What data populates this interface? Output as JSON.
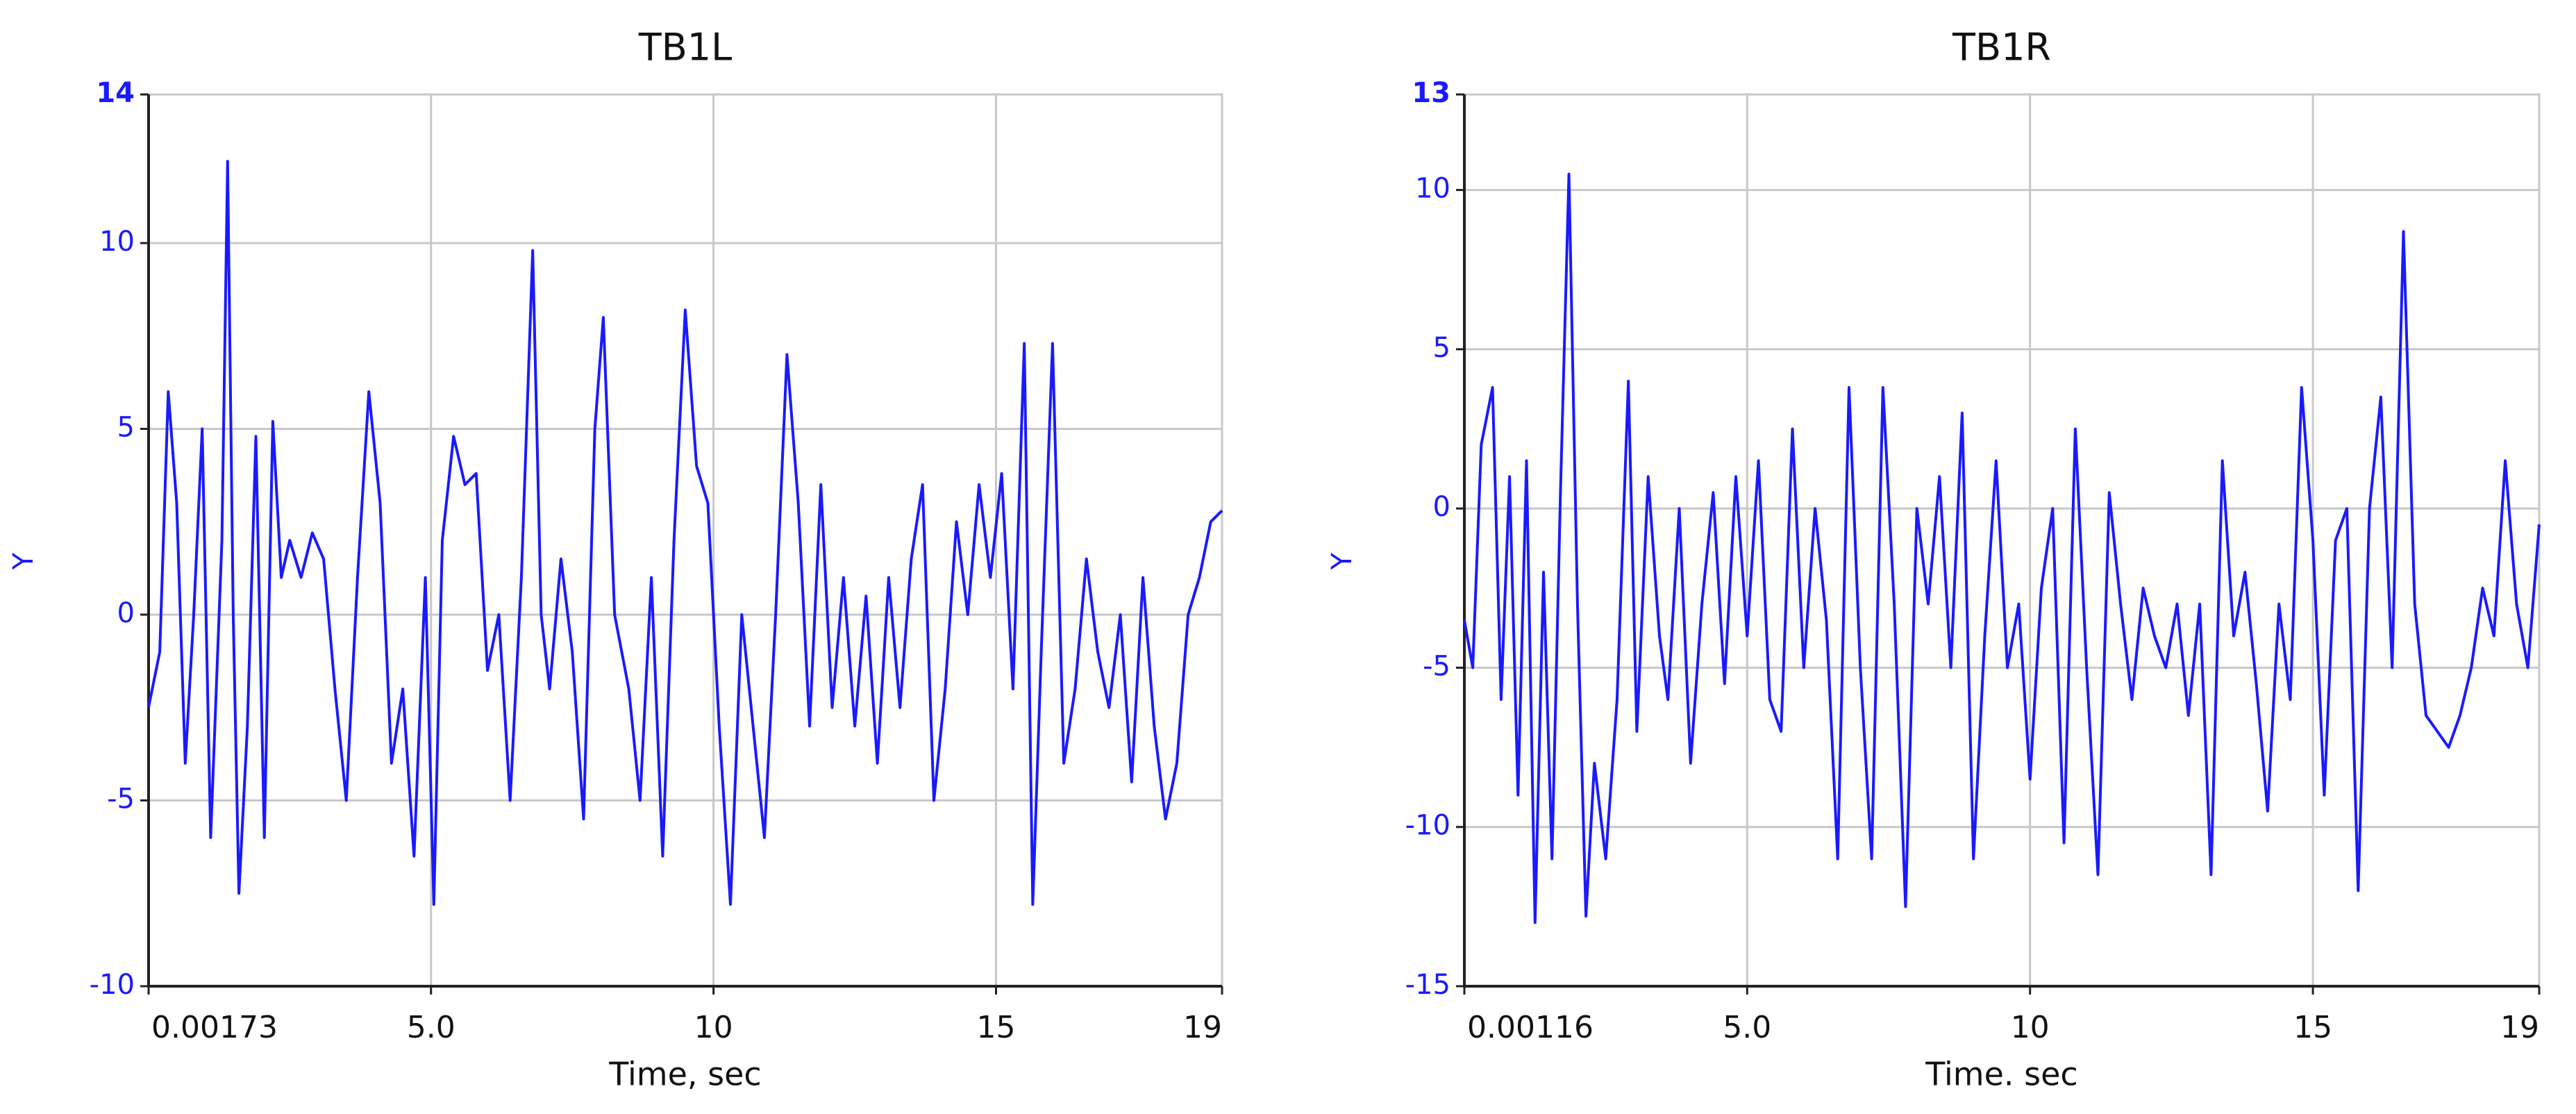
{
  "chart_data": [
    {
      "type": "line",
      "title": "TB1L",
      "xlabel": "Time, sec",
      "ylabel": "Y",
      "color": "#1a1aff",
      "grid": true,
      "xlim": [
        0.00173,
        19.0
      ],
      "ylim": [
        -10,
        14
      ],
      "xticks": [
        0.00173,
        {
          "value": 5,
          "label": "5.0"
        },
        10,
        15,
        19
      ],
      "yticks": [
        14,
        10,
        5,
        0,
        -5,
        -10
      ],
      "x": [
        0.0,
        0.2,
        0.35,
        0.5,
        0.65,
        0.8,
        0.95,
        1.1,
        1.3,
        1.4,
        1.5,
        1.6,
        1.75,
        1.9,
        2.05,
        2.2,
        2.35,
        2.5,
        2.7,
        2.9,
        3.1,
        3.3,
        3.5,
        3.7,
        3.9,
        4.1,
        4.3,
        4.5,
        4.7,
        4.9,
        5.05,
        5.2,
        5.4,
        5.6,
        5.8,
        6.0,
        6.2,
        6.4,
        6.6,
        6.8,
        6.95,
        7.1,
        7.3,
        7.5,
        7.7,
        7.9,
        8.05,
        8.25,
        8.5,
        8.7,
        8.9,
        9.1,
        9.3,
        9.5,
        9.7,
        9.9,
        10.1,
        10.3,
        10.5,
        10.7,
        10.9,
        11.1,
        11.3,
        11.5,
        11.7,
        11.9,
        12.1,
        12.3,
        12.5,
        12.7,
        12.9,
        13.1,
        13.3,
        13.5,
        13.7,
        13.9,
        14.1,
        14.3,
        14.5,
        14.7,
        14.9,
        15.1,
        15.3,
        15.5,
        15.65,
        15.8,
        16.0,
        16.2,
        16.4,
        16.6,
        16.8,
        17.0,
        17.2,
        17.4,
        17.6,
        17.8,
        18.0,
        18.2,
        18.4,
        18.6,
        18.8,
        19.0
      ],
      "values": [
        -2.5,
        -1,
        6,
        3,
        -4,
        0,
        5,
        -6,
        2,
        12.2,
        0,
        -7.5,
        -3,
        4.8,
        -6,
        5.2,
        1,
        2,
        1,
        2.2,
        1.5,
        -2,
        -5,
        1,
        6,
        3,
        -4,
        -2,
        -6.5,
        1,
        -7.8,
        2,
        4.8,
        3.5,
        3.8,
        -1.5,
        0,
        -5,
        1,
        9.8,
        0,
        -2,
        1.5,
        -1,
        -5.5,
        5,
        8,
        0,
        -2,
        -5,
        1,
        -6.5,
        2,
        8.2,
        4,
        3,
        -3,
        -7.8,
        0,
        -3,
        -6,
        0,
        7,
        3,
        -3,
        3.5,
        -2.5,
        1,
        -3,
        0.5,
        -4,
        1,
        -2.5,
        1.5,
        3.5,
        -5,
        -2,
        2.5,
        0,
        3.5,
        1,
        3.8,
        -2,
        7.3,
        -7.8,
        -1,
        7.3,
        -4,
        -2,
        1.5,
        -1,
        -2.5,
        0,
        -4.5,
        1,
        -3,
        -5.5,
        -4,
        0,
        1,
        2.5,
        2.8
      ]
    },
    {
      "type": "line",
      "title": "TB1R",
      "xlabel": "Time. sec",
      "ylabel": "Y",
      "color": "#1a1aff",
      "grid": true,
      "xlim": [
        0.00116,
        19.0
      ],
      "ylim": [
        -15,
        13
      ],
      "xticks": [
        0.00116,
        {
          "value": 5,
          "label": "5.0"
        },
        10,
        15,
        19
      ],
      "yticks": [
        13,
        10,
        5,
        0,
        -5,
        -10,
        -15
      ],
      "x": [
        0.0,
        0.15,
        0.3,
        0.5,
        0.65,
        0.8,
        0.95,
        1.1,
        1.25,
        1.4,
        1.55,
        1.7,
        1.85,
        2.0,
        2.15,
        2.3,
        2.5,
        2.7,
        2.9,
        3.05,
        3.25,
        3.45,
        3.6,
        3.8,
        4.0,
        4.2,
        4.4,
        4.6,
        4.8,
        5.0,
        5.2,
        5.4,
        5.6,
        5.8,
        6.0,
        6.2,
        6.4,
        6.6,
        6.8,
        7.0,
        7.2,
        7.4,
        7.6,
        7.8,
        8.0,
        8.2,
        8.4,
        8.6,
        8.8,
        9.0,
        9.2,
        9.4,
        9.6,
        9.8,
        10.0,
        10.2,
        10.4,
        10.6,
        10.8,
        11.0,
        11.2,
        11.4,
        11.6,
        11.8,
        12.0,
        12.2,
        12.4,
        12.6,
        12.8,
        13.0,
        13.2,
        13.4,
        13.6,
        13.8,
        14.0,
        14.2,
        14.4,
        14.6,
        14.8,
        15.0,
        15.2,
        15.4,
        15.6,
        15.8,
        16.0,
        16.2,
        16.4,
        16.6,
        16.8,
        17.0,
        17.2,
        17.4,
        17.6,
        17.8,
        18.0,
        18.2,
        18.4,
        18.6,
        18.8,
        19.0
      ],
      "values": [
        -3.5,
        -5,
        2,
        3.8,
        -6,
        1,
        -9,
        1.5,
        -13,
        -2,
        -11,
        0.5,
        10.5,
        -3,
        -12.8,
        -8,
        -11,
        -6,
        4,
        -7,
        1,
        -4,
        -6,
        0,
        -8,
        -3,
        0.5,
        -5.5,
        1,
        -4,
        1.5,
        -6,
        -7,
        2.5,
        -5,
        0,
        -3.5,
        -11,
        3.8,
        -5,
        -11,
        3.8,
        -3,
        -12.5,
        0,
        -3,
        1,
        -5,
        3,
        -11,
        -4,
        1.5,
        -5,
        -3,
        -8.5,
        -2.5,
        0,
        -10.5,
        2.5,
        -5,
        -11.5,
        0.5,
        -3,
        -6,
        -2.5,
        -4,
        -5,
        -3,
        -6.5,
        -3,
        -11.5,
        1.5,
        -4,
        -2,
        -5.5,
        -9.5,
        -3,
        -6,
        3.8,
        -1,
        -9,
        -1,
        0,
        -12,
        0,
        3.5,
        -5,
        8.7,
        -3,
        -6.5,
        -7,
        -7.5,
        -6.5,
        -5,
        -2.5,
        -4,
        1.5,
        -3,
        -5,
        -0.5
      ]
    }
  ]
}
